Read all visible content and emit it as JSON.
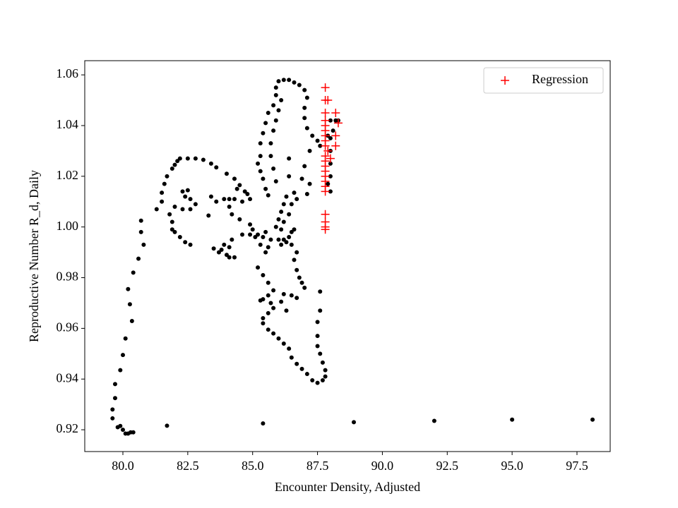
{
  "chart_data": {
    "type": "scatter",
    "x_label": "Encounter Density, Adjusted",
    "y_label": "Reproductive Number R_d, Daily",
    "xlim": [
      78.53,
      98.78
    ],
    "ylim": [
      0.9114,
      1.0656
    ],
    "xticks": [
      {
        "value": 80,
        "label": "80.0"
      },
      82.5,
      {
        "value": 85,
        "label": "85.0"
      },
      87.5,
      {
        "value": 90,
        "label": "90.0"
      },
      92.5,
      {
        "value": 95,
        "label": "95.0"
      },
      97.5
    ],
    "yticks": [
      0.92,
      0.94,
      0.96,
      0.98,
      {
        "value": 1,
        "label": "1.00"
      },
      1.02,
      1.04,
      1.06
    ],
    "legend": "upper right",
    "series": [
      {
        "color": "#000000",
        "marker": "circle",
        "x": [
          80.3,
          81.7,
          85.4,
          88.9,
          92,
          95,
          98.1,
          79.6,
          79.6,
          79.9,
          79.8,
          80,
          80.1,
          80.2,
          80.4,
          79.7,
          79.7,
          79.9,
          80,
          80.1,
          80.35,
          80.27,
          80.2,
          80.4,
          80.6,
          80.8,
          80.7,
          80.7,
          81.3,
          81.5,
          81.5,
          81.6,
          81.7,
          81.9,
          82.0,
          82.1,
          82.2,
          82.5,
          82.8,
          83.1,
          83.4,
          83.6,
          84,
          84.3,
          84.5,
          84.7,
          84.9,
          81.8,
          81.9,
          81.9,
          82.0,
          82.2,
          82.4,
          82.6,
          82.0,
          82.3,
          82.6,
          82.8,
          82.6,
          82.4,
          82.3,
          82.5,
          83.3,
          83.4,
          83.6,
          83.9,
          84.1,
          84.3,
          84.6,
          84.8,
          84.4,
          84.1,
          84.2,
          84.5,
          84.9,
          85.0,
          85.2,
          85.4,
          85.5,
          83.5,
          83.7,
          83.8,
          84.0,
          84.1,
          84.3,
          84.1,
          83.9,
          84.2,
          84.6,
          84.9,
          85.1,
          85.3,
          85.5,
          85.6,
          85.7,
          86.0,
          86.2,
          86.4,
          86.5,
          86.6,
          86.3,
          86.1,
          86.5,
          86.7,
          86.6,
          86.7,
          86.8,
          86.9,
          87.0,
          85.2,
          85.4,
          85.6,
          85.8,
          85.6,
          85.4,
          85.3,
          85.7,
          85.8,
          85.6,
          85.4,
          85.4,
          85.6,
          85.8,
          86,
          86.2,
          86.4,
          86.5,
          86.7,
          86.9,
          87.1,
          87.3,
          87.5,
          87.7,
          87.8,
          87.8,
          87.7,
          87.6,
          87.5,
          87.5,
          87.5,
          87.6,
          87.6,
          86.2,
          86.5,
          86.7,
          86.3,
          86.1,
          85.9,
          86.0,
          86.1,
          86.2,
          86.3,
          85.6,
          85.5,
          85.4,
          85.3,
          85.2,
          85.3,
          85.3,
          85.4,
          85.5,
          85.6,
          85.8,
          85.9,
          85.9,
          86.0,
          86.2,
          86.4,
          86.6,
          86.8,
          87.0,
          87.1,
          87.0,
          87.0,
          87.1,
          87.3,
          87.5,
          87.6,
          86.1,
          86.0,
          85.9,
          85.8,
          85.7,
          85.7,
          85.8,
          85.9,
          86.4,
          86.4,
          86.5,
          86.4,
          86.2,
          86.1,
          87.2,
          87.0,
          86.9,
          86.6,
          86.7,
          87.1,
          87.2,
          88.0,
          88.2,
          88.1,
          88.0,
          88.0,
          88.0,
          88.0,
          87.9,
          88.0,
          87.9,
          88.3
        ],
        "values": [
          0.919,
          0.9216,
          0.9225,
          0.923,
          0.9235,
          0.924,
          0.924,
          0.928,
          0.9245,
          0.9215,
          0.921,
          0.92,
          0.9185,
          0.9185,
          0.919,
          0.9325,
          0.938,
          0.9435,
          0.9495,
          0.956,
          0.9629,
          0.9695,
          0.9755,
          0.982,
          0.9875,
          0.993,
          0.998,
          1.0025,
          1.007,
          1.01,
          1.0135,
          1.017,
          1.02,
          1.023,
          1.0245,
          1.026,
          1.027,
          1.027,
          1.027,
          1.0265,
          1.025,
          1.0235,
          1.021,
          1.019,
          1.0165,
          1.014,
          1.011,
          1.005,
          1.002,
          0.999,
          0.998,
          0.996,
          0.994,
          0.993,
          1.008,
          1.007,
          1.007,
          1.009,
          1.011,
          1.012,
          1.014,
          1.0145,
          1.0045,
          1.012,
          1.01,
          1.011,
          1.011,
          1.011,
          1.01,
          1.013,
          1.015,
          1.008,
          1.005,
          1.003,
          1.001,
          0.999,
          0.997,
          0.996,
          0.998,
          0.9915,
          0.99,
          0.991,
          0.989,
          0.988,
          0.988,
          0.992,
          0.993,
          0.995,
          0.997,
          0.997,
          0.996,
          0.993,
          0.99,
          0.992,
          0.995,
          0.995,
          0.995,
          0.996,
          0.998,
          0.999,
          0.994,
          0.993,
          0.993,
          0.99,
          0.987,
          0.983,
          0.98,
          0.978,
          0.976,
          0.984,
          0.981,
          0.978,
          0.975,
          0.973,
          0.9715,
          0.971,
          0.97,
          0.968,
          0.966,
          0.964,
          0.962,
          0.9595,
          0.958,
          0.956,
          0.954,
          0.952,
          0.9485,
          0.946,
          0.944,
          0.942,
          0.9395,
          0.9385,
          0.9395,
          0.941,
          0.9435,
          0.9465,
          0.95,
          0.953,
          0.957,
          0.9625,
          0.967,
          0.9745,
          0.9735,
          0.973,
          0.972,
          0.967,
          0.9705,
          1.0,
          1.003,
          1.006,
          1.009,
          1.012,
          1.0125,
          1.015,
          1.019,
          1.022,
          1.025,
          1.028,
          1.033,
          1.037,
          1.041,
          1.045,
          1.048,
          1.052,
          1.055,
          1.0575,
          1.058,
          1.058,
          1.057,
          1.056,
          1.054,
          1.051,
          1.047,
          1.043,
          1.039,
          1.036,
          1.034,
          1.032,
          1.05,
          1.046,
          1.042,
          1.038,
          1.033,
          1.028,
          1.023,
          1.018,
          1.027,
          1.02,
          1.009,
          1.005,
          1.002,
          0.999,
          1.03,
          1.024,
          1.019,
          1.0135,
          1.011,
          1.013,
          1.017,
          1.042,
          1.042,
          1.038,
          1.035,
          1.03,
          1.025,
          1.02,
          1.017,
          1.014,
          1.036,
          1.042
        ]
      },
      {
        "name": "Regression",
        "color": "#ff0000",
        "marker": "plus",
        "x": [
          87.8,
          87.8,
          87.8,
          87.8,
          87.8,
          87.8,
          87.8,
          87.8,
          87.8,
          87.8,
          87.8,
          87.8,
          87.8,
          87.8,
          87.8,
          87.8,
          87.8,
          87.8,
          87.8,
          87.8,
          87.8,
          88.2,
          88.3,
          88.2,
          88.2,
          87.9,
          88.0,
          87.9
        ],
        "values": [
          1.055,
          1.05,
          1.045,
          1.042,
          1.04,
          1.038,
          1.036,
          1.034,
          1.032,
          1.028,
          1.026,
          1.024,
          1.022,
          1.02,
          1.018,
          1.016,
          1.014,
          1.005,
          1.002,
          1.0,
          0.999,
          1.045,
          1.041,
          1.036,
          1.032,
          1.05,
          1.027,
          1.03
        ]
      }
    ]
  }
}
